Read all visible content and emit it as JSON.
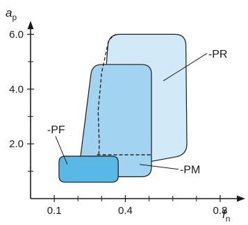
{
  "chart_data": {
    "type": "area",
    "title": "",
    "xlabel": "f",
    "xlabel_sub": "n",
    "ylabel": "a",
    "ylabel_sub": "p",
    "xlim": [
      0.0,
      0.85
    ],
    "ylim": [
      0.0,
      7.0
    ],
    "x_ticks": [
      {
        "value": 0.1,
        "label": "0.1"
      },
      {
        "value": 0.4,
        "label": "0.4"
      },
      {
        "value": 0.8,
        "label": "0.8"
      }
    ],
    "x_minor_ticks": [
      0.2,
      0.3,
      0.5,
      0.6,
      0.7
    ],
    "y_ticks": [
      {
        "value": 2.0,
        "label": "2.0"
      },
      {
        "value": 4.0,
        "label": "4.0"
      },
      {
        "value": 6.0,
        "label": "6.0"
      }
    ],
    "y_minor_ticks": [
      1.0,
      3.0,
      5.0
    ],
    "grid": false,
    "regions": [
      {
        "label": "-PR",
        "fill": "#d2e9f7",
        "stroke": "#1a1a1a",
        "polygon": [
          [
            0.285,
            1.0
          ],
          [
            0.66,
            1.6
          ],
          [
            0.655,
            6.0
          ],
          [
            0.33,
            6.0
          ]
        ],
        "label_at": [
          0.75,
          5.15
        ]
      },
      {
        "label": "-PM",
        "fill": "#a2d3f0",
        "stroke": "#1a1a1a",
        "polygon": [
          [
            0.2,
            0.8
          ],
          [
            0.51,
            0.8
          ],
          [
            0.51,
            4.9
          ],
          [
            0.26,
            4.9
          ]
        ],
        "label_at": [
          0.63,
          0.92
        ]
      },
      {
        "label": "-PF",
        "fill": "#5ab8e6",
        "stroke": "#1a1a1a",
        "polygon": [
          [
            0.12,
            0.6
          ],
          [
            0.37,
            0.6
          ],
          [
            0.37,
            1.55
          ],
          [
            0.12,
            1.55
          ]
        ],
        "label_at": [
          0.07,
          2.38
        ]
      }
    ],
    "hidden_edge": {
      "style": "dashed",
      "points": [
        [
          0.285,
          1.0
        ],
        [
          0.29,
          2.0
        ],
        [
          0.285,
          3.2
        ],
        [
          0.3,
          4.6
        ],
        [
          0.33,
          5.8
        ],
        [
          0.36,
          6.0
        ]
      ]
    },
    "inner_dash": {
      "style": "dashed",
      "points": [
        [
          0.28,
          1.6
        ],
        [
          0.51,
          1.6
        ]
      ]
    },
    "legend": "none"
  }
}
